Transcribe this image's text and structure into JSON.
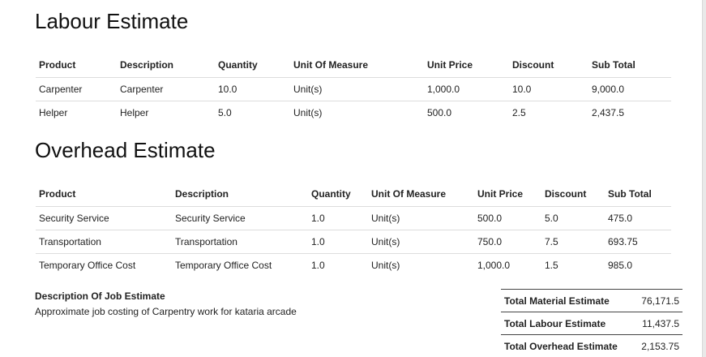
{
  "labour": {
    "title": "Labour Estimate",
    "headers": [
      "Product",
      "Description",
      "Quantity",
      "Unit Of Measure",
      "Unit Price",
      "Discount",
      "Sub Total"
    ],
    "rows": [
      [
        "Carpenter",
        "Carpenter",
        "10.0",
        "Unit(s)",
        "1,000.0",
        "10.0",
        "9,000.0"
      ],
      [
        "Helper",
        "Helper",
        "5.0",
        "Unit(s)",
        "500.0",
        "2.5",
        "2,437.5"
      ]
    ]
  },
  "overhead": {
    "title": "Overhead Estimate",
    "headers": [
      "Product",
      "Description",
      "Quantity",
      "Unit Of Measure",
      "Unit Price",
      "Discount",
      "Sub Total"
    ],
    "rows": [
      [
        "Security Service",
        "Security Service",
        "1.0",
        "Unit(s)",
        "500.0",
        "5.0",
        "475.0"
      ],
      [
        "Transportation",
        "Transportation",
        "1.0",
        "Unit(s)",
        "750.0",
        "7.5",
        "693.75"
      ],
      [
        "Temporary Office Cost",
        "Temporary Office Cost",
        "1.0",
        "Unit(s)",
        "1,000.0",
        "1.5",
        "985.0"
      ]
    ]
  },
  "description": {
    "title": "Description Of Job Estimate",
    "text": "Approximate job costing of Carpentry work for kataria arcade"
  },
  "totals": [
    {
      "label": "Total Material Estimate",
      "value": "76,171.5"
    },
    {
      "label": "Total Labour Estimate",
      "value": "11,437.5"
    },
    {
      "label": "Total Overhead Estimate",
      "value": "2,153.75"
    }
  ]
}
